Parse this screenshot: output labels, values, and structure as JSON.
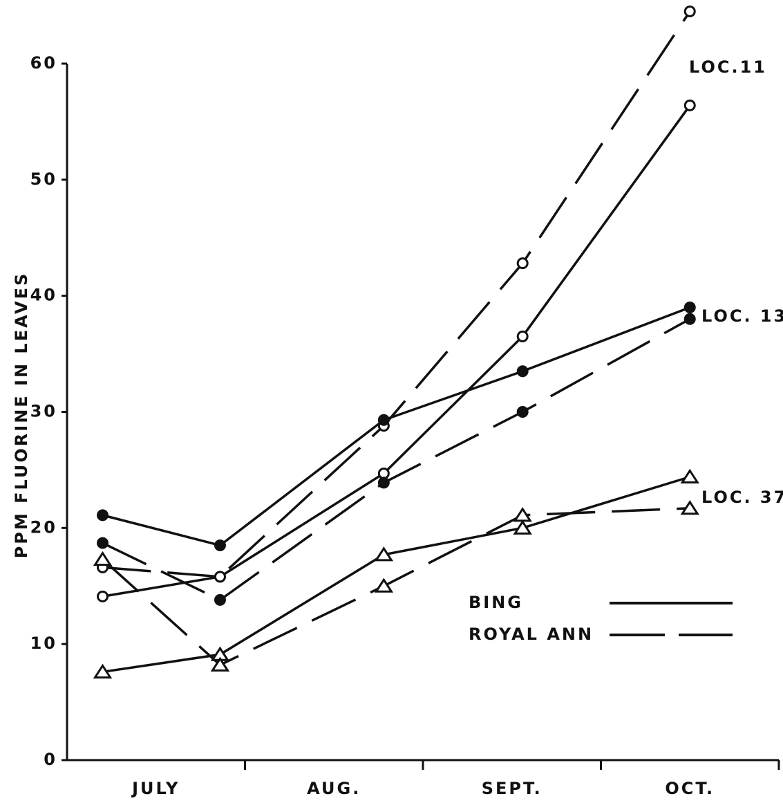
{
  "chart_data": {
    "type": "line",
    "ylabel": "PPM FLUORINE IN LEAVES",
    "categories": [
      "JULY",
      "AUG.",
      "SEPT.",
      "OCT."
    ],
    "xlim": [
      0,
      4
    ],
    "x": [
      0.2,
      0.86,
      1.78,
      2.56,
      3.5
    ],
    "ylim": [
      0,
      60
    ],
    "yticks": [
      0,
      10,
      20,
      30,
      40,
      50,
      60
    ],
    "color": "#111111",
    "groups": [
      {
        "label": "LOC.11",
        "marker": "open-circle",
        "series": [
          {
            "name": "BING",
            "dashed": false,
            "values": [
              14.1,
              15.8,
              24.7,
              36.5,
              56.4
            ]
          },
          {
            "name": "ROYAL ANN",
            "dashed": true,
            "values": [
              16.6,
              15.8,
              28.8,
              42.8,
              64.5
            ]
          }
        ]
      },
      {
        "label": "LOC. 13",
        "marker": "filled-circle",
        "series": [
          {
            "name": "BING",
            "dashed": false,
            "values": [
              21.1,
              18.5,
              29.3,
              33.5,
              39.0
            ]
          },
          {
            "name": "ROYAL ANN",
            "dashed": true,
            "values": [
              18.7,
              13.8,
              23.9,
              30.0,
              38.0
            ]
          }
        ]
      },
      {
        "label": "LOC. 37",
        "marker": "triangle",
        "series": [
          {
            "name": "BING",
            "dashed": false,
            "values": [
              7.6,
              9.1,
              17.7,
              20.0,
              24.4
            ]
          },
          {
            "name": "ROYAL ANN",
            "dashed": true,
            "values": [
              17.3,
              8.2,
              15.0,
              21.1,
              21.7
            ]
          }
        ]
      }
    ]
  }
}
